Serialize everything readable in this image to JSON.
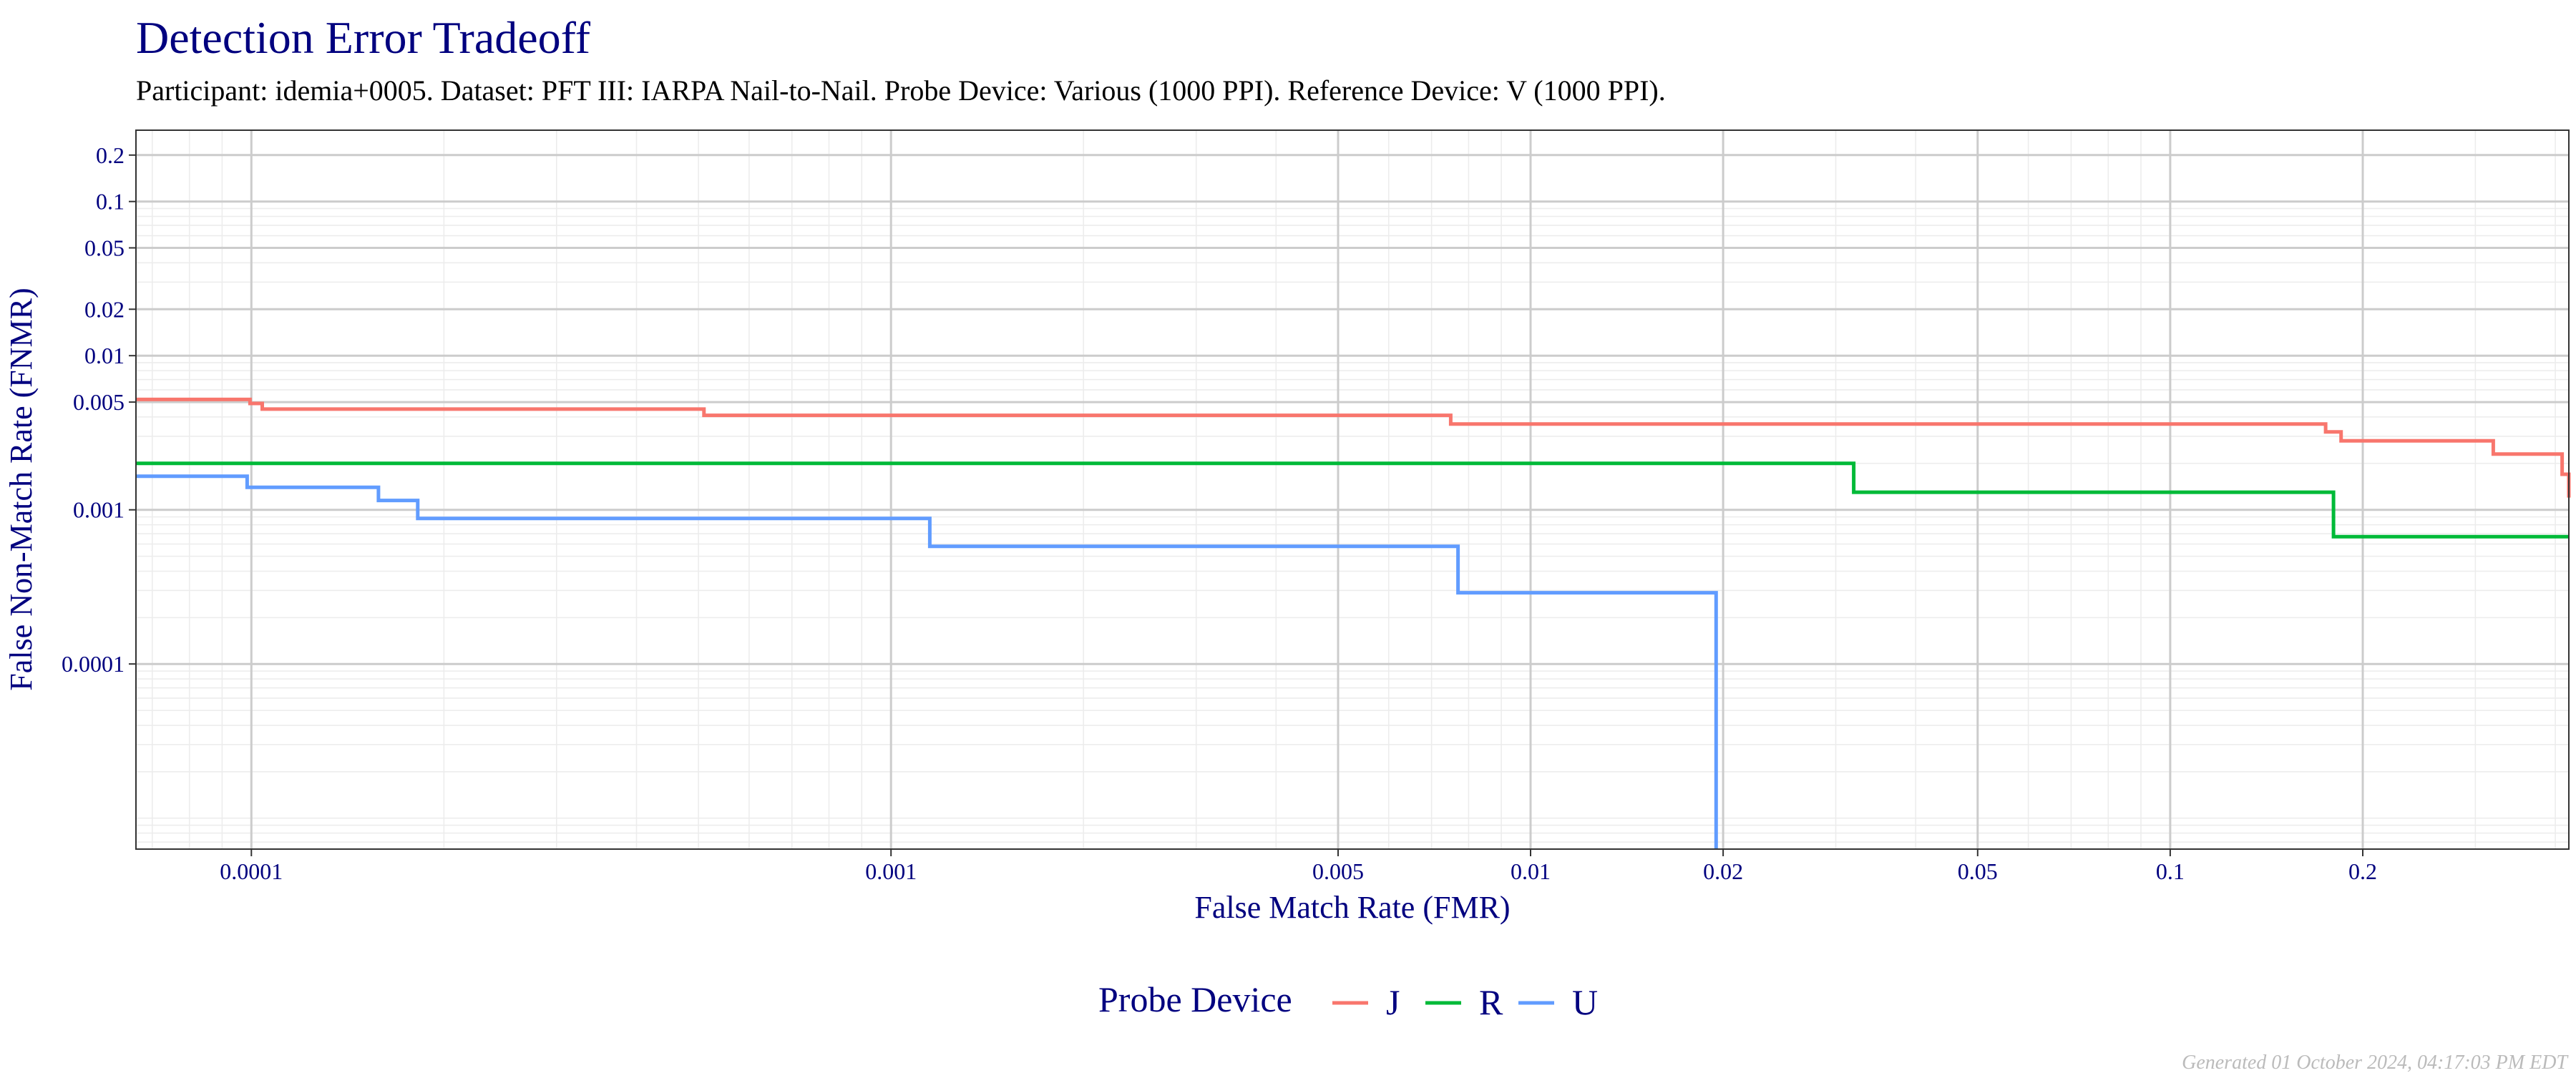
{
  "chart_data": {
    "type": "line",
    "title": "Detection Error Tradeoff",
    "subtitle": "Participant: idemia+0005. Dataset: PFT III: IARPA Nail-to-Nail. Probe Device: Various (1000 PPI). Reference Device: V (1000 PPI).",
    "xlabel": "False Match Rate (FMR)",
    "ylabel": "False Non-Match Rate (FNMR)",
    "x_scale": "log",
    "y_scale": "log",
    "xlim": [
      6.6e-05,
      0.42
    ],
    "ylim": [
      6.3e-06,
      0.29
    ],
    "x_ticks": [
      {
        "value": 0.0001,
        "label": "0.0001"
      },
      {
        "value": 0.001,
        "label": "0.001"
      },
      {
        "value": 0.005,
        "label": "0.005"
      },
      {
        "value": 0.01,
        "label": "0.01"
      },
      {
        "value": 0.02,
        "label": "0.02"
      },
      {
        "value": 0.05,
        "label": "0.05"
      },
      {
        "value": 0.1,
        "label": "0.1"
      },
      {
        "value": 0.2,
        "label": "0.2"
      }
    ],
    "y_ticks": [
      {
        "value": 0.0001,
        "label": "0.0001"
      },
      {
        "value": 0.001,
        "label": "0.001"
      },
      {
        "value": 0.005,
        "label": "0.005"
      },
      {
        "value": 0.01,
        "label": "0.01"
      },
      {
        "value": 0.02,
        "label": "0.02"
      },
      {
        "value": 0.05,
        "label": "0.05"
      },
      {
        "value": 0.1,
        "label": "0.1"
      },
      {
        "value": 0.2,
        "label": "0.2"
      }
    ],
    "grid": true,
    "legend": {
      "title": "Probe Device",
      "position": "bottom"
    },
    "series": [
      {
        "name": "J",
        "color": "#F8766D",
        "x": [
          6.6e-05,
          9.95e-05,
          0.000104,
          0.00051,
          0.0075,
          0.175,
          0.185,
          0.32,
          0.41,
          0.42
        ],
        "y": [
          0.0052,
          0.0049,
          0.0045,
          0.0041,
          0.0036,
          0.0032,
          0.0028,
          0.0023,
          0.0017,
          0.0012
        ]
      },
      {
        "name": "R",
        "color": "#00BA38",
        "x": [
          6.6e-05,
          0.032,
          0.18,
          0.42
        ],
        "y": [
          0.002,
          0.0013,
          0.00067,
          0.00067
        ]
      },
      {
        "name": "U",
        "color": "#619CFF",
        "x": [
          6.6e-05,
          9.85e-05,
          0.000158,
          0.000182,
          0.00115,
          0.0077,
          0.0195,
          0.0195
        ],
        "y": [
          0.00165,
          0.0014,
          0.00115,
          0.00088,
          0.00058,
          0.00029,
          0.00029,
          6.3e-06
        ]
      }
    ],
    "footnote": "Generated 01 October 2024, 04:17:03 PM EDT"
  }
}
